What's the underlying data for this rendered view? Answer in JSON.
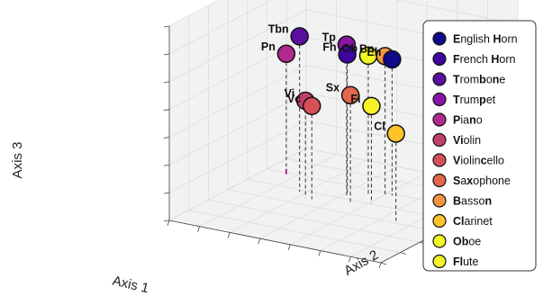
{
  "chart_data": {
    "type": "scatter",
    "projection": "3d",
    "xlabel": "Axis 1",
    "ylabel": "Axis 2",
    "zlabel": "Axis 3",
    "grid": true,
    "legend_placement": "right",
    "points": [
      {
        "label": "Tbn",
        "name": "Trombone",
        "color": "#5b0fa0",
        "x": 0.26,
        "y": 0.55,
        "z": 0.8
      },
      {
        "label": "Tp",
        "name": "Trumpet",
        "color": "#8a15a4",
        "x": 0.45,
        "y": 0.6,
        "z": 0.78
      },
      {
        "label": "Ob",
        "name": "Oboe",
        "color": "#f0f921",
        "x": 0.52,
        "y": 0.65,
        "z": 0.72
      },
      {
        "label": "Bn",
        "name": "Bassoon",
        "color": "#f7953f",
        "x": 0.58,
        "y": 0.68,
        "z": 0.72
      },
      {
        "label": "Eh",
        "name": "English Horn",
        "color": "#10098a",
        "x": 0.6,
        "y": 0.7,
        "z": 0.7
      },
      {
        "label": "Fh",
        "name": "French Horn",
        "color": "#3f04a0",
        "x": 0.44,
        "y": 0.62,
        "z": 0.72
      },
      {
        "label": "Pn",
        "name": "Piano",
        "color": "#b12a90",
        "x": 0.1,
        "y": 0.7,
        "z": 0.62
      },
      {
        "label": "Sx",
        "name": "Saxophone",
        "color": "#e3674f",
        "x": 0.5,
        "y": 0.55,
        "z": 0.55
      },
      {
        "label": "Cl",
        "name": "Clarinet",
        "color": "#fdc328",
        "x": 0.78,
        "y": 0.45,
        "z": 0.45
      },
      {
        "label": "Vi",
        "name": "Violin",
        "color": "#c2416b",
        "x": 0.32,
        "y": 0.5,
        "z": 0.5
      },
      {
        "label": "Vc",
        "name": "Violincello",
        "color": "#d65058",
        "x": 0.35,
        "y": 0.5,
        "z": 0.48
      },
      {
        "label": "Fl",
        "name": "Flute",
        "color": "#f5f229",
        "x": 0.58,
        "y": 0.58,
        "z": 0.5
      }
    ],
    "legend": [
      {
        "parts": [
          [
            "E",
            true
          ],
          [
            "nglish ",
            false
          ],
          [
            "H",
            true
          ],
          [
            "orn",
            false
          ]
        ],
        "color": "#10098a"
      },
      {
        "parts": [
          [
            "F",
            true
          ],
          [
            "rench ",
            false
          ],
          [
            "H",
            true
          ],
          [
            "orn",
            false
          ]
        ],
        "color": "#3f04a0"
      },
      {
        "parts": [
          [
            "T",
            true
          ],
          [
            "rom",
            false
          ],
          [
            "b",
            true
          ],
          [
            "o",
            false
          ],
          [
            "n",
            true
          ],
          [
            "e",
            false
          ]
        ],
        "color": "#5b0fa0"
      },
      {
        "parts": [
          [
            "T",
            true
          ],
          [
            "rum",
            false
          ],
          [
            "p",
            true
          ],
          [
            "et",
            false
          ]
        ],
        "color": "#8a15a4"
      },
      {
        "parts": [
          [
            "P",
            true
          ],
          [
            "ia",
            false
          ],
          [
            "n",
            true
          ],
          [
            "o",
            false
          ]
        ],
        "color": "#b12a90"
      },
      {
        "parts": [
          [
            "Vi",
            true
          ],
          [
            "olin",
            false
          ]
        ],
        "color": "#c2416b"
      },
      {
        "parts": [
          [
            "V",
            true
          ],
          [
            "iolin",
            false
          ],
          [
            "c",
            true
          ],
          [
            "ello",
            false
          ]
        ],
        "color": "#d65058"
      },
      {
        "parts": [
          [
            "S",
            true
          ],
          [
            "a",
            false
          ],
          [
            "x",
            true
          ],
          [
            "ophone",
            false
          ]
        ],
        "color": "#e3674f"
      },
      {
        "parts": [
          [
            "B",
            true
          ],
          [
            "asso",
            false
          ],
          [
            "n",
            true
          ],
          [
            "",
            false
          ]
        ],
        "color": "#f7953f"
      },
      {
        "parts": [
          [
            "Cl",
            true
          ],
          [
            "arinet",
            false
          ]
        ],
        "color": "#fdc328"
      },
      {
        "parts": [
          [
            "Ob",
            true
          ],
          [
            "oe",
            false
          ]
        ],
        "color": "#f0f921"
      },
      {
        "parts": [
          [
            "Fl",
            true
          ],
          [
            "ute",
            false
          ]
        ],
        "color": "#f5f229"
      }
    ]
  }
}
